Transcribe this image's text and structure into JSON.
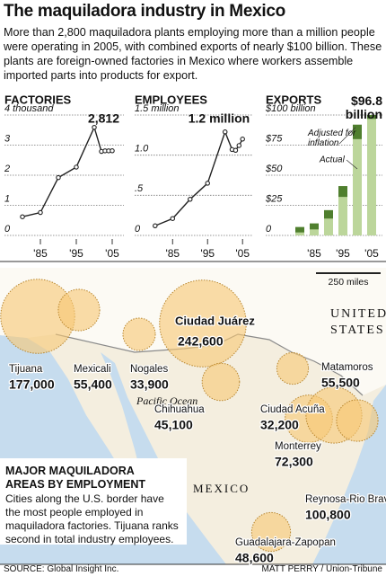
{
  "header": {
    "title": "The maquiladora industry in Mexico",
    "intro": "More than 2,800 maquiladora plants employing more than a million people were operating in 2005, with combined exports of nearly $100 billion. These plants are foreign-owned factories in Mexico where workers assemble imported parts into products for export."
  },
  "chart_data": [
    {
      "type": "line",
      "title": "FACTORIES",
      "x": [
        1980,
        1985,
        1990,
        1995,
        2000,
        2002,
        2003,
        2004,
        2005
      ],
      "values": [
        0.62,
        0.76,
        1.92,
        2.27,
        3.59,
        2.79,
        2.81,
        2.81,
        2.812
      ],
      "value_labels": [
        null,
        null,
        null,
        null,
        null,
        null,
        null,
        null,
        "2,812"
      ],
      "color": "#222",
      "xlim": [
        1978,
        2007
      ],
      "xticks": [
        {
          "value": 1985,
          "label": "'85"
        },
        {
          "value": 1995,
          "label": "'95"
        },
        {
          "value": 2005,
          "label": "'05"
        }
      ],
      "ylim": [
        0,
        4
      ],
      "yticks": [
        0,
        1,
        2,
        3,
        {
          "value": 4,
          "label": "4 thousand"
        }
      ],
      "grid": true
    },
    {
      "type": "line",
      "title": "EMPLOYEES",
      "x": [
        1980,
        1985,
        1990,
        1995,
        2000,
        2002,
        2003,
        2004,
        2005
      ],
      "values": [
        0.12,
        0.21,
        0.45,
        0.65,
        1.29,
        1.07,
        1.06,
        1.12,
        1.2
      ],
      "value_labels": [
        null,
        null,
        null,
        null,
        null,
        null,
        null,
        null,
        "1.2 million"
      ],
      "color": "#222",
      "xlim": [
        1978,
        2007
      ],
      "xticks": [
        {
          "value": 1985,
          "label": "'85"
        },
        {
          "value": 1995,
          "label": "'95"
        },
        {
          "value": 2005,
          "label": "'05"
        }
      ],
      "ylim": [
        0,
        1.5
      ],
      "yticks": [
        0,
        {
          "value": 0.5,
          "label": ".5"
        },
        {
          "value": 1,
          "label": "1.0"
        },
        {
          "value": 1.5,
          "label": "1.5 million"
        }
      ],
      "grid": true
    },
    {
      "type": "bar",
      "title": "EXPORTS",
      "categories": [
        null,
        "'85",
        null,
        "'95",
        null,
        "'05"
      ],
      "series": [
        {
          "name": "Adjusted for inflation",
          "color": "#4f7f2e",
          "values": [
            7,
            10,
            21,
            41,
            92,
            100
          ]
        },
        {
          "name": "Actual",
          "color": "#bcd69b",
          "values": [
            2.5,
            5,
            14,
            32,
            80,
            96.8
          ],
          "value_labels": [
            null,
            null,
            null,
            null,
            null,
            "$96.8 billion"
          ]
        }
      ],
      "ylim": [
        0,
        100
      ],
      "yticks": [
        0,
        {
          "value": 25,
          "label": "$25"
        },
        {
          "value": 50,
          "label": "$50"
        },
        {
          "value": 75,
          "label": "$75"
        },
        {
          "value": 100,
          "label": "$100 billion"
        }
      ],
      "grid": true
    }
  ],
  "map": {
    "scale": "250 miles",
    "country_us": "UNITED STATES",
    "country_mx": "MEXICO",
    "ocean": "Pacific Ocean",
    "cities": [
      {
        "name": "Tijuana",
        "value": 177000,
        "label": "177,000"
      },
      {
        "name": "Mexicali",
        "value": 55400,
        "label": "55,400"
      },
      {
        "name": "Nogales",
        "value": 33900,
        "label": "33,900"
      },
      {
        "name": "Ciudad Juárez",
        "value": 242600,
        "label": "242,600"
      },
      {
        "name": "Chihuahua",
        "value": 45100,
        "label": "45,100"
      },
      {
        "name": "Ciudad Acuña",
        "value": 32200,
        "label": "32,200"
      },
      {
        "name": "Monterrey",
        "value": 72300,
        "label": "72,300"
      },
      {
        "name": "Reynosa-Rio Bravo",
        "value": 100800,
        "label": "100,800"
      },
      {
        "name": "Matamoros",
        "value": 55500,
        "label": "55,500"
      },
      {
        "name": "Guadalajara-Zapopan",
        "value": 48600,
        "label": "48,600"
      }
    ]
  },
  "legend_box": {
    "heading": "MAJOR MAQUILADORA AREAS BY EMPLOYMENT",
    "text": "Cities along the U.S. border have the most people employed in maquiladora factories. Tijuana ranks second in total industry employees."
  },
  "footer": {
    "source": "SOURCE: Global Insight Inc.",
    "credit": "MATT PERRY / Union-Tribune"
  }
}
